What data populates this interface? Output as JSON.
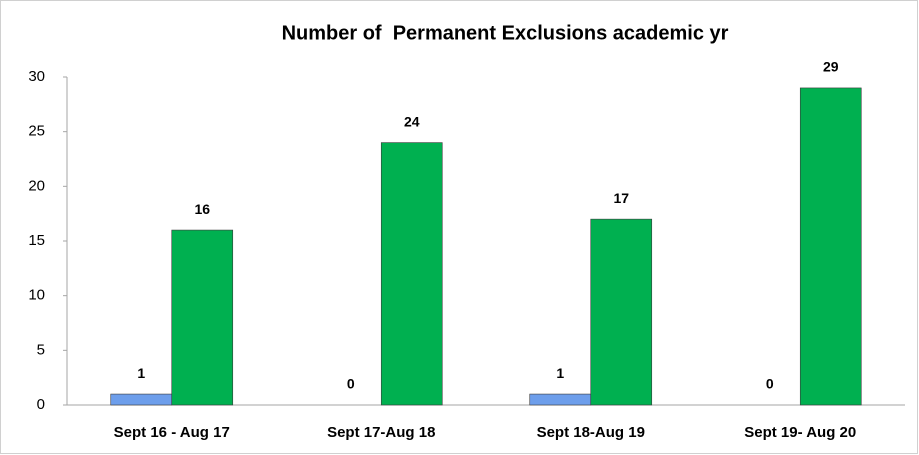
{
  "chart_data": {
    "type": "bar",
    "title": "Number of  Permanent Exclusions academic yr",
    "categories": [
      "Sept 16 - Aug 17",
      "Sept 17-Aug 18",
      "Sept 18-Aug 19",
      "Sept 19- Aug 20"
    ],
    "series": [
      {
        "color": "#6d9eeb",
        "values": [
          1,
          0,
          1,
          0
        ]
      },
      {
        "color": "#00b050",
        "values": [
          16,
          24,
          17,
          29
        ]
      }
    ],
    "ylim": [
      0,
      30
    ],
    "yticks": [
      0,
      5,
      10,
      15,
      20,
      25,
      30
    ],
    "grid": false
  }
}
